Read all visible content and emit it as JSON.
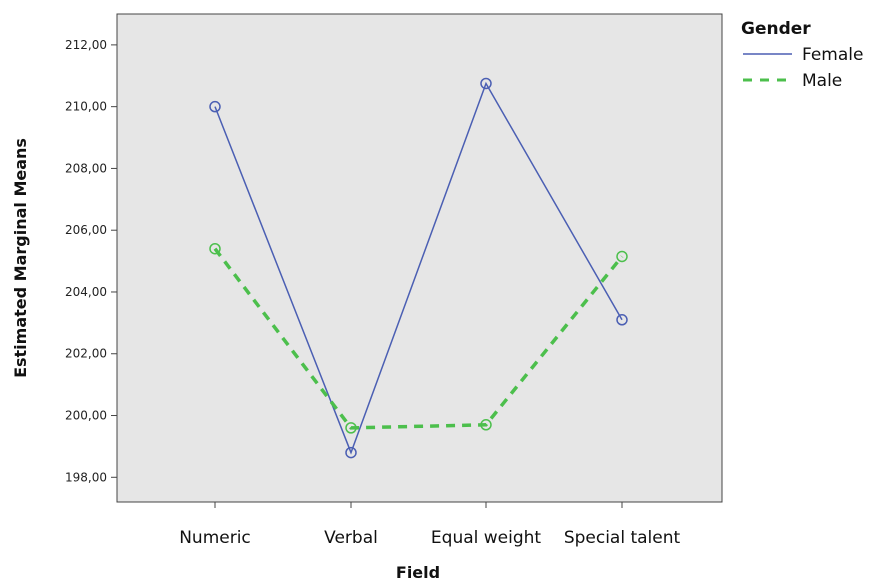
{
  "chart_data": {
    "type": "line",
    "xlabel": "Field",
    "ylabel": "Estimated Marginal Means",
    "categories": [
      "Numeric",
      "Verbal",
      "Equal weight",
      "Special talent"
    ],
    "ylim": [
      197.2,
      213.0
    ],
    "yticks": [
      198,
      200,
      202,
      204,
      206,
      208,
      210,
      212
    ],
    "ytick_labels": [
      "198,00",
      "200,00",
      "202,00",
      "204,00",
      "206,00",
      "208,00",
      "210,00",
      "212,00"
    ],
    "grid": false,
    "legend": {
      "title": "Gender",
      "placement": "top-right outside"
    },
    "series": [
      {
        "name": "Female",
        "values": [
          210.0,
          198.8,
          210.75,
          203.1
        ],
        "color": "#4b5fb3",
        "style": "solid",
        "marker": "circle"
      },
      {
        "name": "Male",
        "values": [
          205.4,
          199.6,
          199.7,
          205.15
        ],
        "color": "#4cbf4c",
        "style": "dashed",
        "marker": "circle"
      }
    ],
    "background": "#e6e6e6"
  }
}
